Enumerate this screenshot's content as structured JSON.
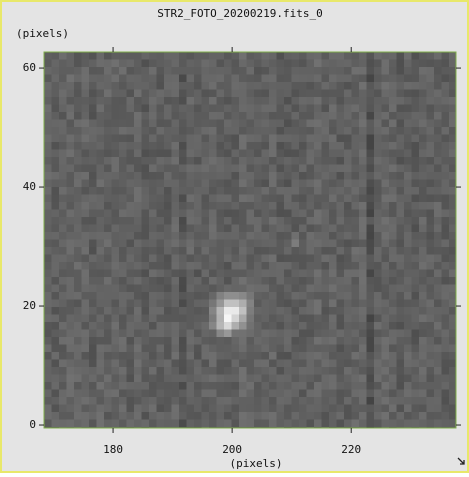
{
  "chart_data": {
    "type": "image",
    "title": "STR2_FOTO_20200219.fits_0",
    "xlabel": "(pixels)",
    "ylabel": "(pixels)",
    "xlim": [
      168.4,
      237.6
    ],
    "ylim": [
      -0.5,
      62.7
    ],
    "xticks": [
      180,
      200,
      220
    ],
    "yticks": [
      0,
      20,
      40,
      60
    ]
  }
}
